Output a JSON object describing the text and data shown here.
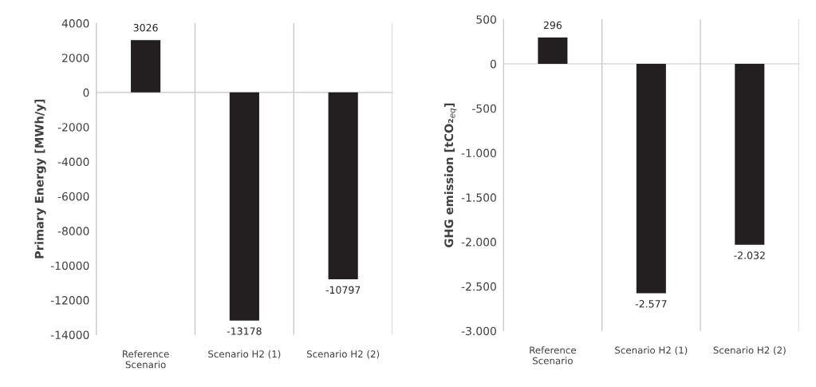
{
  "chart_data": [
    {
      "type": "bar",
      "ylabel": "Primary Energy [MWh/y]",
      "categories": [
        "Reference\nScenario",
        "Scenario H2 (1)",
        "Scenario H2 (2)"
      ],
      "values": [
        3026,
        -13178,
        -10797
      ],
      "color": "#231f20",
      "ylim": [
        -14000,
        4000
      ],
      "yticks": [
        -14000,
        -12000,
        -10000,
        -8000,
        -6000,
        -4000,
        -2000,
        0,
        2000,
        4000
      ],
      "grid": "x",
      "legend": false,
      "data_labels": true
    },
    {
      "type": "bar",
      "ylabel": "GHG emission [tCO₂$_{eq}$]",
      "categories": [
        "Reference\nScenario",
        "Scenario H2 (1)",
        "Scenario H2 (2)"
      ],
      "values": [
        296,
        -2577,
        -2032
      ],
      "value_labels": [
        "296",
        "-2.577",
        "-2.032"
      ],
      "color": "#231f20",
      "ylim": [
        -3000,
        500
      ],
      "yticks": [
        {
          "value": -3000,
          "label": "-3.000"
        },
        {
          "value": -2500,
          "label": "-2.500"
        },
        {
          "value": -2000,
          "label": "-2.000"
        },
        {
          "value": -1500,
          "label": "-1.500"
        },
        {
          "value": -1000,
          "label": "-1.000"
        },
        {
          "value": -500,
          "label": "-500"
        },
        0,
        500
      ],
      "grid": "x",
      "legend": false
    }
  ]
}
